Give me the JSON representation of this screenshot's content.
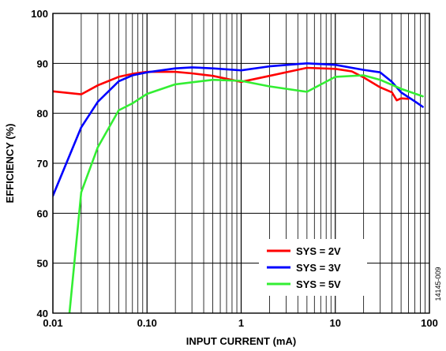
{
  "chart_data": {
    "type": "line",
    "xlabel": "INPUT CURRENT (mA)",
    "ylabel": "EFFICIENCY (%)",
    "x_scale": "log",
    "xlim": [
      0.01,
      100
    ],
    "ylim": [
      40,
      100
    ],
    "x_tick_labels": [
      "0.01",
      "0.10",
      "1",
      "10",
      "100"
    ],
    "y_tick_labels": [
      "40",
      "50",
      "60",
      "70",
      "80",
      "90",
      "100"
    ],
    "grid": true,
    "legend_position": "bottom-right",
    "figure_id": "14145-009",
    "series": [
      {
        "name": "SYS = 2V",
        "color": "#ff0000",
        "x": [
          0.01,
          0.02,
          0.03,
          0.05,
          0.07,
          0.1,
          0.2,
          0.3,
          0.5,
          1,
          2,
          5,
          10,
          15,
          20,
          30,
          40,
          45,
          50,
          60
        ],
        "y": [
          84.4,
          83.8,
          85.6,
          87.3,
          87.9,
          88.3,
          88.3,
          88.0,
          87.5,
          86.3,
          87.5,
          89.1,
          88.9,
          88.4,
          87.2,
          85.2,
          84.2,
          82.6,
          83.0,
          82.9
        ]
      },
      {
        "name": "SYS = 3V",
        "color": "#0000ff",
        "x": [
          0.01,
          0.02,
          0.03,
          0.05,
          0.07,
          0.1,
          0.2,
          0.3,
          0.5,
          1,
          2,
          5,
          10,
          20,
          30,
          40,
          50,
          70,
          85
        ],
        "y": [
          63.5,
          77.2,
          82.3,
          86.4,
          87.6,
          88.2,
          89.0,
          89.2,
          89.0,
          88.6,
          89.4,
          90.0,
          89.7,
          88.7,
          88.2,
          86.3,
          84.2,
          82.4,
          81.3
        ]
      },
      {
        "name": "SYS = 5V",
        "color": "#33ee33",
        "x": [
          0.015,
          0.02,
          0.03,
          0.05,
          0.07,
          0.1,
          0.2,
          0.5,
          1,
          2,
          5,
          10,
          20,
          30,
          50,
          85
        ],
        "y": [
          40.0,
          64.2,
          73.2,
          80.6,
          82.0,
          83.9,
          85.8,
          86.7,
          86.5,
          85.4,
          84.3,
          87.3,
          87.6,
          86.7,
          84.9,
          83.4
        ]
      }
    ]
  }
}
